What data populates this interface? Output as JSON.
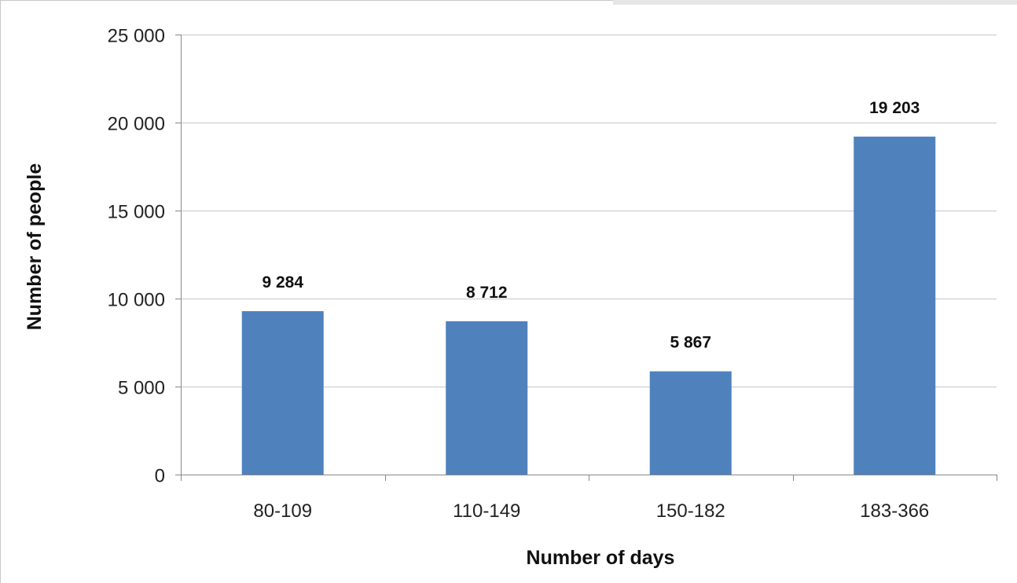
{
  "chart_data": {
    "type": "bar",
    "categories": [
      "80-109",
      "110-149",
      "150-182",
      "183-366"
    ],
    "values": [
      9284,
      8712,
      5867,
      19203
    ],
    "data_labels": [
      "9 284",
      "8 712",
      "5 867",
      "19 203"
    ],
    "title": "",
    "xlabel": "Number of days",
    "ylabel": "Number of people",
    "ylim": [
      0,
      25000
    ],
    "yticks": [
      0,
      5000,
      10000,
      15000,
      20000,
      25000
    ],
    "ytick_labels": [
      "0",
      "5 000",
      "10 000",
      "15 000",
      "20 000",
      "25 000"
    ],
    "grid": true,
    "legend": "none",
    "bar_color": "#4f81bd",
    "grid_color": "#c8c8c8"
  }
}
